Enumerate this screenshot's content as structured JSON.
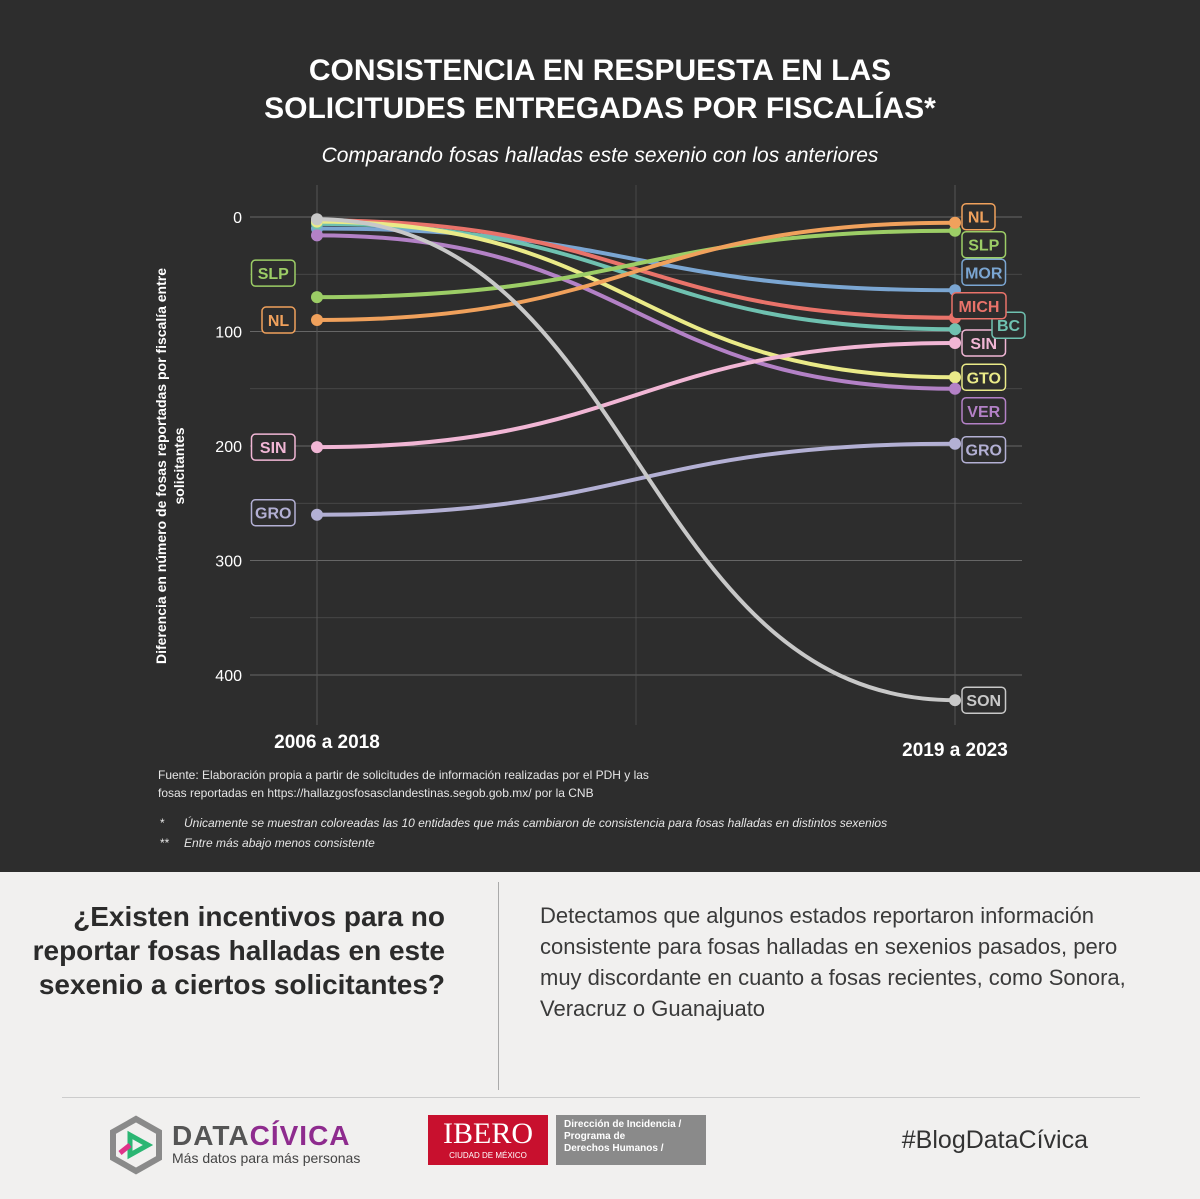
{
  "title_line1": "CONSISTENCIA EN RESPUESTA EN LAS",
  "title_line2": "SOLICITUDES ENTREGADAS POR FISCALÍAS*",
  "subtitle": "Comparando fosas halladas este sexenio con los anteriores",
  "source_line1": "Fuente: Elaboración propia a partir de solicitudes de información realizadas por el PDH y las",
  "source_line2": "fosas reportadas en https://hallazgosfosasclandestinas.segob.gob.mx/ por la CNB",
  "note1_mark": "*",
  "note1_text": "Únicamente se muestran coloreadas las 10 entidades que más cambiaron de consistencia para fosas halladas en distintos sexenios",
  "note2_mark": "**",
  "note2_text": "Entre más abajo menos consistente",
  "question": "¿Existen incentivos para no reportar fosas halladas en este sexenio a ciertos solicitantes?",
  "answer": "Detectamos que algunos estados reportaron información consistente para fosas halladas en sexenios pasados, pero muy discordante en cuanto a fosas recientes, como Sonora, Veracruz o Guanajuato",
  "brand_name_a": "DATA",
  "brand_name_b": "CÍVICA",
  "brand_tagline": "Más datos para más personas",
  "partner_name": "IBERO",
  "partner_sub": "CIUDAD DE MÉXICO",
  "partner_text1": "Dirección de Incidencia /",
  "partner_text2": "Programa de",
  "partner_text3": "Derechos Humanos /",
  "hashtag": "#BlogDataCívica",
  "colors": {
    "panel": "#2d2d2d",
    "grid": "#555555",
    "text": "#ffffff"
  },
  "chart_data": {
    "type": "line",
    "subtype": "bump",
    "title": "CONSISTENCIA EN RESPUESTA EN LAS SOLICITUDES ENTREGADAS POR FISCALÍAS*",
    "ylabel": "Diferencia en número de fosas reportadas por fiscalía entre solicitantes",
    "x": [
      "2006 a 2018",
      "2019 a 2023"
    ],
    "y_inverted": true,
    "ylim": [
      0,
      430
    ],
    "yticks": [
      0,
      100,
      200,
      300,
      400
    ],
    "grid": true,
    "series": [
      {
        "name": "SON",
        "color": "#c8c8c8",
        "values": [
          2,
          422
        ],
        "label_side": "end"
      },
      {
        "name": "GRO",
        "color": "#b3b0d4",
        "values": [
          260,
          198
        ],
        "label_side": "both"
      },
      {
        "name": "SIN",
        "color": "#f1b6d5",
        "values": [
          201,
          110
        ],
        "label_side": "both"
      },
      {
        "name": "NL",
        "color": "#f0a15c",
        "values": [
          90,
          5
        ],
        "label_side": "both"
      },
      {
        "name": "SLP",
        "color": "#9ccd66",
        "values": [
          70,
          12
        ],
        "label_side": "both"
      },
      {
        "name": "VER",
        "color": "#b381c6",
        "values": [
          16,
          150
        ],
        "label_side": "end"
      },
      {
        "name": "GTO",
        "color": "#eaea88",
        "values": [
          4,
          140
        ],
        "label_side": "end"
      },
      {
        "name": "BC",
        "color": "#6fc1b0",
        "values": [
          6,
          98
        ],
        "label_side": "end"
      },
      {
        "name": "MICH",
        "color": "#e9736a",
        "values": [
          3,
          88
        ],
        "label_side": "end"
      },
      {
        "name": "MOR",
        "color": "#7ba6d2",
        "values": [
          10,
          64
        ],
        "label_side": "end"
      }
    ]
  }
}
